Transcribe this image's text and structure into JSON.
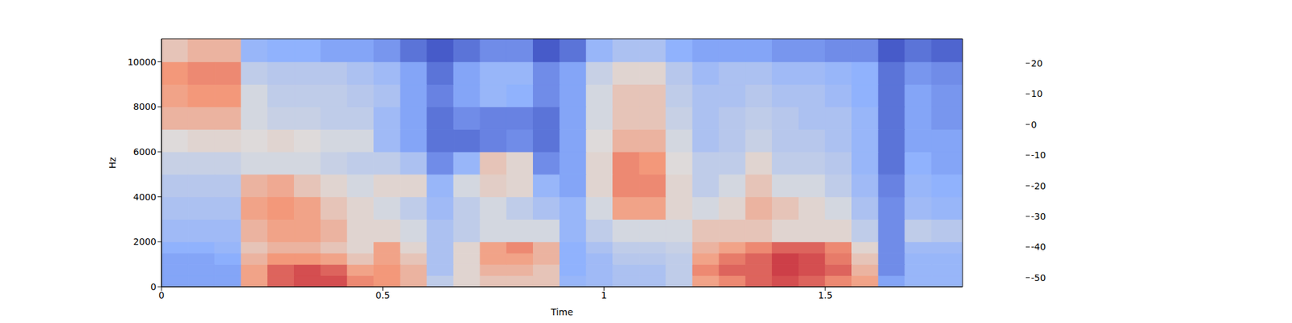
{
  "chart_data": {
    "type": "heatmap",
    "xlabel": "Time",
    "ylabel": "Hz",
    "xlim": [
      0,
      1.81
    ],
    "xticks": [
      0,
      0.5,
      1,
      1.5
    ],
    "ylim": [
      0,
      11025
    ],
    "yticks": [
      0,
      2000,
      4000,
      6000,
      8000,
      10000
    ],
    "x_bins": [
      0,
      0.06,
      0.12,
      0.18,
      0.24,
      0.3,
      0.36,
      0.42,
      0.48,
      0.54,
      0.6,
      0.66,
      0.72,
      0.78,
      0.84,
      0.9,
      0.96,
      1.02,
      1.08,
      1.14,
      1.2,
      1.26,
      1.32,
      1.38,
      1.44,
      1.5,
      1.56,
      1.62,
      1.68,
      1.74,
      1.81
    ],
    "y_bins": [
      0,
      500,
      1000,
      1500,
      2000,
      3000,
      4000,
      5000,
      6000,
      7000,
      8000,
      9000,
      10000,
      11025
    ],
    "values": [
      [
        -35,
        -35,
        -35,
        5,
        15,
        18,
        18,
        10,
        8,
        0,
        -20,
        -10,
        -5,
        -5,
        -5,
        -30,
        -28,
        -25,
        -25,
        -20,
        5,
        10,
        15,
        18,
        15,
        10,
        5,
        -35,
        -30,
        -30
      ],
      [
        -35,
        -35,
        -35,
        5,
        15,
        18,
        15,
        5,
        8,
        0,
        -25,
        -10,
        0,
        0,
        -5,
        -32,
        -28,
        -25,
        -25,
        -20,
        10,
        15,
        15,
        20,
        18,
        15,
        0,
        -40,
        -30,
        -30
      ],
      [
        -35,
        -35,
        -33,
        0,
        8,
        8,
        5,
        -5,
        5,
        -5,
        -25,
        -10,
        5,
        5,
        0,
        -32,
        -28,
        -22,
        -22,
        -20,
        5,
        12,
        15,
        20,
        18,
        12,
        -5,
        -40,
        -30,
        -30
      ],
      [
        -32,
        -32,
        -30,
        -5,
        0,
        0,
        -5,
        -10,
        5,
        -10,
        -25,
        -10,
        5,
        10,
        0,
        -32,
        -25,
        -20,
        -20,
        -18,
        0,
        5,
        10,
        15,
        15,
        10,
        -10,
        -40,
        -28,
        -28
      ],
      [
        -28,
        -28,
        -28,
        0,
        5,
        5,
        0,
        -10,
        -10,
        -15,
        -25,
        -20,
        -15,
        -15,
        -15,
        -30,
        -20,
        -15,
        -15,
        -15,
        -5,
        -5,
        -5,
        -10,
        -10,
        -10,
        -20,
        -40,
        -20,
        -22
      ],
      [
        -25,
        -25,
        -25,
        5,
        8,
        5,
        -5,
        -10,
        -15,
        -20,
        -28,
        -20,
        -15,
        -20,
        -25,
        -30,
        -15,
        5,
        5,
        -10,
        -15,
        -10,
        0,
        -5,
        -10,
        -15,
        -25,
        -40,
        -28,
        -30
      ],
      [
        -22,
        -22,
        -22,
        0,
        3,
        -5,
        -10,
        -15,
        -10,
        -10,
        -30,
        -15,
        -8,
        -10,
        -30,
        -35,
        -10,
        10,
        10,
        -10,
        -20,
        -15,
        -5,
        -15,
        -15,
        -20,
        -28,
        -42,
        -30,
        -32
      ],
      [
        -18,
        -18,
        -18,
        -15,
        -15,
        -15,
        -18,
        -20,
        -20,
        -25,
        -40,
        -30,
        -5,
        -10,
        -40,
        -35,
        -10,
        10,
        8,
        -12,
        -20,
        -20,
        -10,
        -20,
        -20,
        -22,
        -30,
        -45,
        -32,
        -35
      ],
      [
        -12,
        -10,
        -10,
        -12,
        -10,
        -12,
        -15,
        -15,
        -28,
        -35,
        -45,
        -45,
        -42,
        -40,
        -45,
        -35,
        -12,
        0,
        0,
        -15,
        -25,
        -22,
        -18,
        -22,
        -22,
        -25,
        -30,
        -45,
        -35,
        -35
      ],
      [
        0,
        0,
        0,
        -15,
        -18,
        -18,
        -20,
        -20,
        -28,
        -35,
        -45,
        -40,
        -42,
        -42,
        -45,
        -35,
        -15,
        -5,
        -5,
        -18,
        -25,
        -22,
        -20,
        -22,
        -25,
        -25,
        -30,
        -45,
        -35,
        -38
      ],
      [
        5,
        8,
        8,
        -15,
        -20,
        -20,
        -20,
        -22,
        -25,
        -35,
        -42,
        -35,
        -30,
        -32,
        -40,
        -35,
        -15,
        -5,
        -5,
        -20,
        -25,
        -25,
        -22,
        -25,
        -25,
        -28,
        -32,
        -45,
        -35,
        -38
      ],
      [
        8,
        10,
        10,
        -20,
        -22,
        -22,
        -22,
        -25,
        -28,
        -35,
        -45,
        -35,
        -30,
        -30,
        -40,
        -35,
        -18,
        -10,
        -10,
        -22,
        -28,
        -25,
        -25,
        -28,
        -28,
        -30,
        -32,
        -45,
        -38,
        -40
      ],
      [
        -5,
        0,
        0,
        -30,
        -32,
        -32,
        -35,
        -35,
        -38,
        -45,
        -50,
        -45,
        -40,
        -40,
        -50,
        -45,
        -30,
        -25,
        -25,
        -32,
        -35,
        -35,
        -35,
        -38,
        -38,
        -40,
        -40,
        -50,
        -45,
        -48
      ]
    ],
    "color_range": [
      -53,
      28
    ],
    "color_ticks": [
      -50,
      -40,
      -30,
      -20,
      -10,
      0,
      10,
      20
    ]
  }
}
